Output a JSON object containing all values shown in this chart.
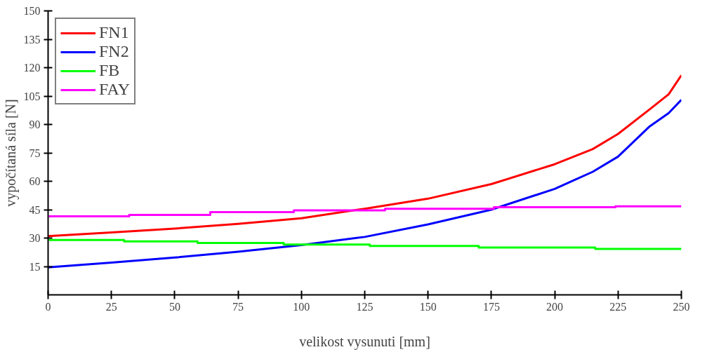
{
  "chart_data": {
    "type": "line",
    "xlabel": "velikost vysunuti [mm]",
    "ylabel": "vypočítaná síla [N]",
    "xlim": [
      0,
      250
    ],
    "ylim": [
      0,
      150
    ],
    "xticks": [
      0,
      25,
      50,
      75,
      100,
      125,
      150,
      175,
      200,
      225,
      250
    ],
    "yticks": [
      15,
      30,
      45,
      60,
      75,
      90,
      105,
      120,
      135,
      150
    ],
    "grid": false,
    "legend": "top left",
    "line_style": "solid",
    "marker": "none",
    "series": [
      {
        "name": "FN1",
        "color": "#ff0000",
        "x": [
          0,
          25,
          50,
          75,
          100,
          125,
          150,
          175,
          200,
          215,
          225,
          237.5,
          245,
          250
        ],
        "values": [
          31,
          33,
          35,
          37.5,
          40.5,
          45.5,
          50.8,
          58.5,
          69,
          77,
          85,
          98,
          106,
          116
        ]
      },
      {
        "name": "FN2",
        "color": "#0000ff",
        "x": [
          0,
          25,
          50,
          75,
          100,
          125,
          150,
          175,
          200,
          215,
          225,
          237.5,
          245,
          250
        ],
        "values": [
          14.5,
          17,
          19.7,
          22.8,
          26.3,
          30.6,
          37.2,
          45,
          56,
          65,
          73,
          89,
          96,
          103
        ]
      },
      {
        "name": "FB",
        "color": "#00ff00",
        "x": [
          0,
          30,
          30,
          59,
          59,
          93,
          93,
          127,
          127,
          170,
          170,
          216,
          216,
          250
        ],
        "values": [
          29,
          29,
          28.2,
          28.2,
          27.4,
          27.4,
          26.6,
          26.6,
          25.8,
          25.8,
          25,
          25,
          24.3,
          24.3
        ]
      },
      {
        "name": "FAY",
        "color": "#ff00ff",
        "x": [
          0,
          32,
          32,
          64,
          64,
          97,
          97,
          133,
          133,
          176,
          176,
          224,
          224,
          250
        ],
        "values": [
          41.5,
          41.5,
          42.2,
          42.2,
          43.7,
          43.7,
          44.6,
          44.6,
          45.5,
          45.5,
          46.3,
          46.3,
          46.8,
          46.8
        ]
      }
    ]
  }
}
